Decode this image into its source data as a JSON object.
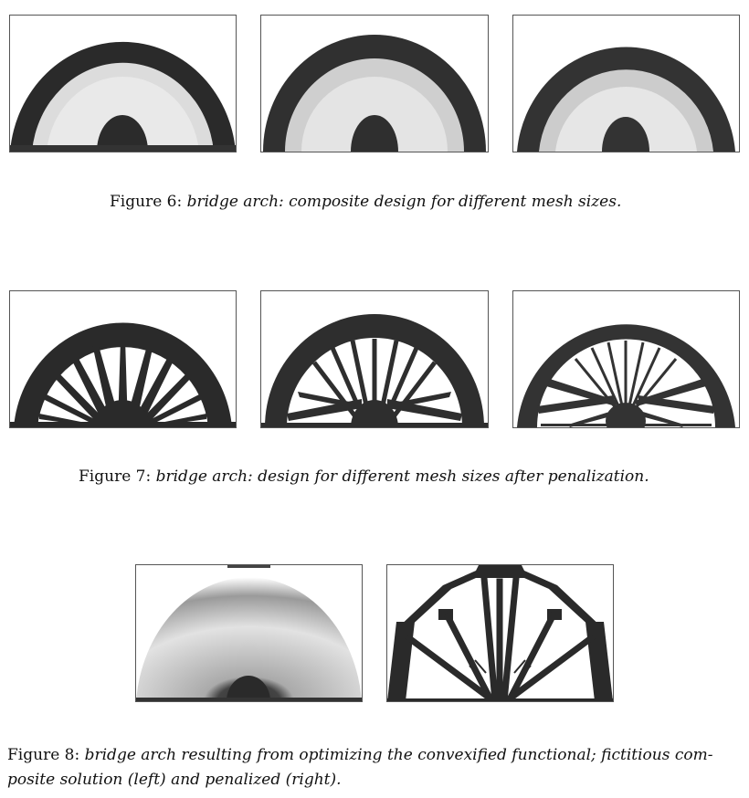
{
  "figures": [
    {
      "label": "Figure 6:",
      "caption": "bridge arch: composite design for different mesh sizes.",
      "panels": [
        "composite-coarse",
        "composite-medium",
        "composite-fine"
      ]
    },
    {
      "label": "Figure 7:",
      "caption": "bridge arch: design for different mesh sizes after penalization.",
      "panels": [
        "penalized-coarse",
        "penalized-medium",
        "penalized-fine"
      ]
    },
    {
      "label": "Figure 8:",
      "caption_line1": "bridge arch resulting from optimizing the convexified functional; fictitious com-",
      "caption_line2": "posite solution (left) and penalized (right).",
      "panels": [
        "convexified-composite",
        "convexified-penalized"
      ]
    }
  ]
}
